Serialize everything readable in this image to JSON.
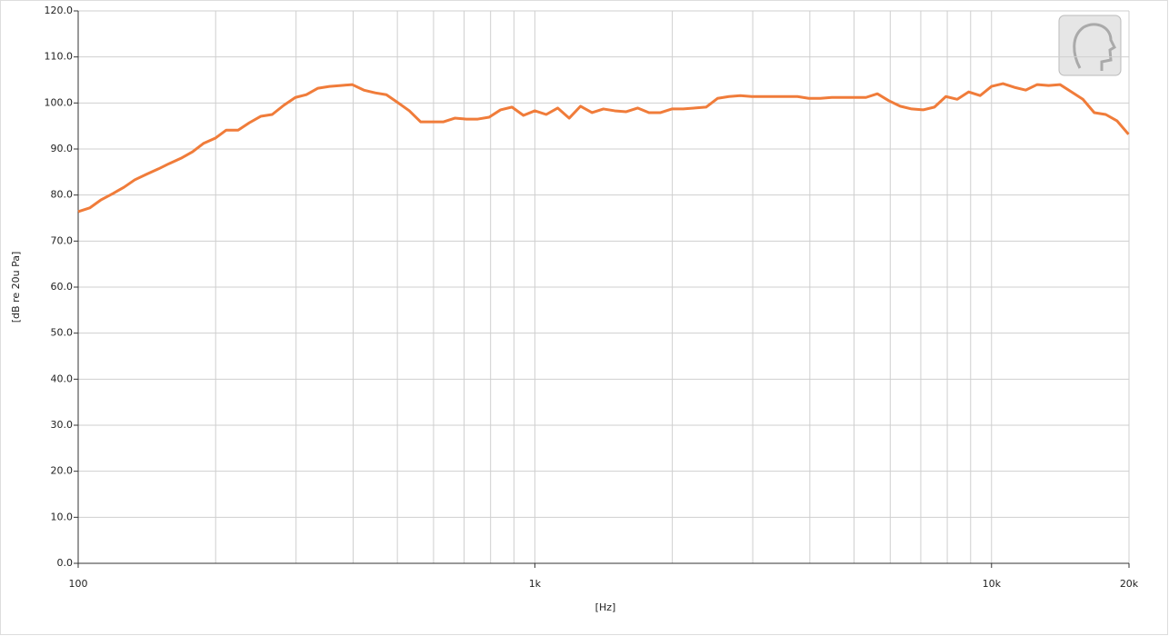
{
  "chart_data": {
    "type": "line",
    "xlabel": "[Hz]",
    "ylabel": "[dB re 20u Pa]",
    "xscale": "log",
    "grid": true,
    "color": "#f07c3a",
    "x": [
      100,
      106,
      112,
      119,
      126,
      133,
      141,
      150,
      158,
      168,
      178,
      188,
      200,
      211,
      224,
      237,
      251,
      266,
      282,
      299,
      316,
      335,
      355,
      376,
      398,
      422,
      447,
      473,
      501,
      531,
      562,
      596,
      631,
      668,
      708,
      750,
      794,
      841,
      891,
      944,
      1000,
      1059,
      1122,
      1189,
      1259,
      1334,
      1413,
      1496,
      1585,
      1679,
      1778,
      1884,
      1995,
      2113,
      2239,
      2371,
      2512,
      2661,
      2818,
      2985,
      3162,
      3350,
      3548,
      3758,
      3981,
      4217,
      4467,
      4732,
      5012,
      5309,
      5623,
      5957,
      6310,
      6683,
      7079,
      7499,
      7943,
      8414,
      8913,
      9441,
      10000,
      10593,
      11220,
      11885,
      12589,
      13335,
      14125,
      14962,
      15849,
      16788,
      17783,
      18836,
      19953
    ],
    "values": [
      76.4,
      77.2,
      78.9,
      80.3,
      81.7,
      83.3,
      84.5,
      85.7,
      86.8,
      88.0,
      89.4,
      91.2,
      92.4,
      94.1,
      94.1,
      95.7,
      97.1,
      97.5,
      99.5,
      101.2,
      101.8,
      103.2,
      103.6,
      103.8,
      104.0,
      102.8,
      102.2,
      101.8,
      100.1,
      98.3,
      95.9,
      95.9,
      95.9,
      96.7,
      96.5,
      96.5,
      96.9,
      98.5,
      99.1,
      97.3,
      98.3,
      97.5,
      98.9,
      96.7,
      99.3,
      97.9,
      98.7,
      98.3,
      98.1,
      98.9,
      97.9,
      97.9,
      98.7,
      98.7,
      98.9,
      99.1,
      101.0,
      101.4,
      101.6,
      101.4,
      101.4,
      101.4,
      101.4,
      101.4,
      101.0,
      101.0,
      101.2,
      101.2,
      101.2,
      101.2,
      102.0,
      100.5,
      99.3,
      98.7,
      98.5,
      99.1,
      101.4,
      100.8,
      102.4,
      101.6,
      103.6,
      104.2,
      103.4,
      102.8,
      104.0,
      103.8,
      104.0,
      102.4,
      100.8,
      97.9,
      97.5,
      96.1,
      93.2
    ],
    "xlim": [
      100,
      20000
    ],
    "xticks": [
      100,
      {
        "value": 1000,
        "label": "1k"
      },
      {
        "value": 10000,
        "label": "10k"
      },
      {
        "value": 20000,
        "label": "20k"
      }
    ],
    "xminor": [
      200,
      300,
      400,
      500,
      600,
      700,
      800,
      900,
      2000,
      3000,
      4000,
      5000,
      6000,
      7000,
      8000,
      9000
    ],
    "ylim": [
      0,
      120
    ],
    "yticks": [
      {
        "value": 0,
        "label": "0.0"
      },
      {
        "value": 10,
        "label": "10.0"
      },
      {
        "value": 20,
        "label": "20.0"
      },
      {
        "value": 30,
        "label": "30.0"
      },
      {
        "value": 40,
        "label": "40.0"
      },
      {
        "value": 50,
        "label": "50.0"
      },
      {
        "value": 60,
        "label": "60.0"
      },
      {
        "value": 70,
        "label": "70.0"
      },
      {
        "value": 80,
        "label": "80.0"
      },
      {
        "value": 90,
        "label": "90.0"
      },
      {
        "value": 100,
        "label": "100.0"
      },
      {
        "value": 110,
        "label": "110.0"
      },
      {
        "value": 120,
        "label": "120.0"
      }
    ]
  }
}
